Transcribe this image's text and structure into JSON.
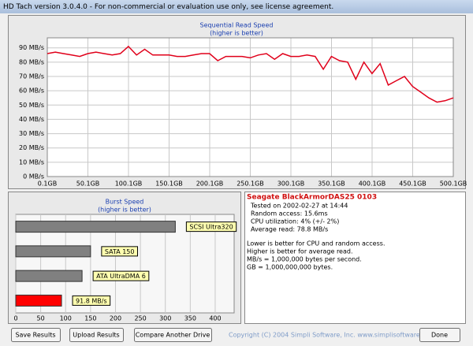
{
  "window_title": "HD Tach version 3.0.4.0  - For non-commercial or evaluation use only, see license agreement.",
  "chart_data": [
    {
      "type": "line",
      "title": "Sequential Read Speed",
      "subtitle": "(higher is better)",
      "x": [
        0.1,
        10,
        20,
        30,
        40,
        50,
        60,
        70,
        80,
        90,
        100,
        110,
        120,
        130,
        140,
        150,
        160,
        170,
        180,
        190,
        200,
        210,
        220,
        230,
        240,
        250,
        260,
        270,
        280,
        290,
        300,
        310,
        320,
        330,
        340,
        350,
        360,
        370,
        380,
        390,
        400,
        410,
        420,
        430,
        440,
        450,
        460,
        470,
        480,
        490,
        500.1
      ],
      "series": [
        {
          "name": "Read speed",
          "color": "#e0001a",
          "values": [
            86,
            87,
            86,
            85,
            84,
            86,
            87,
            86,
            85,
            86,
            91,
            85,
            89,
            85,
            85,
            85,
            84,
            84,
            85,
            86,
            86,
            81,
            84,
            84,
            84,
            83,
            85,
            86,
            82,
            86,
            84,
            84,
            85,
            84,
            75,
            84,
            81,
            80,
            68,
            80,
            72,
            79,
            64,
            67,
            70,
            63,
            59,
            55,
            52,
            53,
            55
          ]
        }
      ],
      "xlim": [
        0.1,
        500.1
      ],
      "xticks": [
        {
          "value": 0.1,
          "label": "0.1GB"
        },
        {
          "value": 50.1,
          "label": "50.1GB"
        },
        {
          "value": 100.1,
          "label": "100.1GB"
        },
        {
          "value": 150.1,
          "label": "150.1GB"
        },
        {
          "value": 200.1,
          "label": "200.1GB"
        },
        {
          "value": 250.1,
          "label": "250.1GB"
        },
        {
          "value": 300.1,
          "label": "300.1GB"
        },
        {
          "value": 350.1,
          "label": "350.1GB"
        },
        {
          "value": 400.1,
          "label": "400.1GB"
        },
        {
          "value": 450.1,
          "label": "450.1GB"
        },
        {
          "value": 500.1,
          "label": "500.1GB"
        }
      ],
      "ylim": [
        0,
        97
      ],
      "yticks": [
        {
          "value": 0,
          "label": "0 MB/s"
        },
        {
          "value": 10,
          "label": "10 MB/s"
        },
        {
          "value": 20,
          "label": "20 MB/s"
        },
        {
          "value": 30,
          "label": "30 MB/s"
        },
        {
          "value": 40,
          "label": "40 MB/s"
        },
        {
          "value": 50,
          "label": "50 MB/s"
        },
        {
          "value": 60,
          "label": "60 MB/s"
        },
        {
          "value": 70,
          "label": "70 MB/s"
        },
        {
          "value": 80,
          "label": "80 MB/s"
        },
        {
          "value": 90,
          "label": "90 MB/s"
        }
      ],
      "grid": true
    },
    {
      "type": "bar",
      "orientation": "horizontal",
      "title": "Burst Speed",
      "subtitle": "(higher is better)",
      "categories": [
        "SCSI Ultra320",
        "SATA 150",
        "ATA UltraDMA 6",
        null
      ],
      "values": [
        320,
        150,
        133,
        91.8
      ],
      "value_labels": [
        null,
        null,
        null,
        "91.8 MB/s"
      ],
      "colors": [
        "#808080",
        "#808080",
        "#808080",
        "#ff0000"
      ],
      "xlim": [
        0,
        438
      ],
      "xticks": [
        0,
        50,
        100,
        150,
        200,
        250,
        300,
        350,
        400
      ],
      "grid": true
    }
  ],
  "info": {
    "drive": "Seagate BlackArmorDAS25 0103",
    "results": [
      "Tested on 2002-02-27 at 14:44",
      "Random access: 15.6ms",
      "CPU utilization: 4% (+/- 2%)",
      "Average read: 78.8 MB/s"
    ],
    "notes": [
      "Lower is better for CPU and random access.",
      "Higher is better for average read.",
      "MB/s = 1,000,000 bytes per second.",
      "GB = 1,000,000,000 bytes."
    ]
  },
  "buttons": [
    "Save Results",
    "Upload Results",
    "Compare Another Drive",
    "Done"
  ],
  "copyright": "Copyright (C) 2004 Simpli Software, Inc. www.simplisoftware.com"
}
